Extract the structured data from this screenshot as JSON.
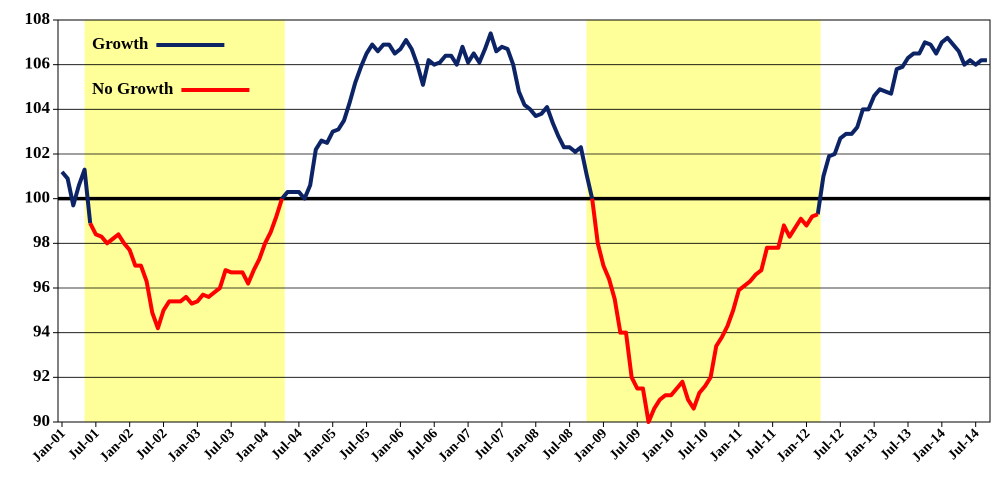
{
  "chart_data": {
    "type": "line",
    "categories": [
      "Jan-01",
      null,
      null,
      null,
      null,
      null,
      "Jul-01",
      null,
      null,
      null,
      null,
      null,
      "Jan-02",
      null,
      null,
      null,
      null,
      null,
      "Jul-02",
      null,
      null,
      null,
      null,
      null,
      "Jan-03",
      null,
      null,
      null,
      null,
      null,
      "Jul-03",
      null,
      null,
      null,
      null,
      null,
      "Jan-04",
      null,
      null,
      null,
      null,
      null,
      "Jul-04",
      null,
      null,
      null,
      null,
      null,
      "Jan-05",
      null,
      null,
      null,
      null,
      null,
      "Jul-05",
      null,
      null,
      null,
      null,
      null,
      "Jan-06",
      null,
      null,
      null,
      null,
      null,
      "Jul-06",
      null,
      null,
      null,
      null,
      null,
      "Jan-07",
      null,
      null,
      null,
      null,
      null,
      "Jul-07",
      null,
      null,
      null,
      null,
      null,
      "Jan-08",
      null,
      null,
      null,
      null,
      null,
      "Jul-08",
      null,
      null,
      null,
      null,
      null,
      "Jan-09",
      null,
      null,
      null,
      null,
      null,
      "Jul-09",
      null,
      null,
      null,
      null,
      null,
      "Jan-10",
      null,
      null,
      null,
      null,
      null,
      "Jul-10",
      null,
      null,
      null,
      null,
      null,
      "Jan-11",
      null,
      null,
      null,
      null,
      null,
      "Jul-11",
      null,
      null,
      null,
      null,
      null,
      "Jan-12",
      null,
      null,
      null,
      null,
      null,
      "Jul-12",
      null,
      null,
      null,
      null,
      null,
      "Jan-13",
      null,
      null,
      null,
      null,
      null,
      "Jul-13",
      null,
      null,
      null,
      null,
      null,
      "Jan-14",
      null,
      null,
      null,
      null,
      null,
      "Jul-14",
      null,
      null
    ],
    "series": [
      {
        "name": "Growth",
        "color": "#0c2366",
        "values": [
          101.2,
          100.9,
          99.7,
          100.6,
          101.3,
          98.9,
          null,
          null,
          null,
          null,
          null,
          null,
          null,
          null,
          null,
          null,
          null,
          null,
          null,
          null,
          null,
          null,
          null,
          null,
          null,
          null,
          null,
          null,
          null,
          null,
          null,
          null,
          null,
          null,
          null,
          null,
          null,
          null,
          null,
          100.0,
          100.3,
          100.3,
          100.3,
          100.0,
          100.6,
          102.2,
          102.6,
          102.5,
          103.0,
          103.1,
          103.5,
          104.3,
          105.2,
          105.9,
          106.5,
          106.9,
          106.6,
          106.9,
          106.9,
          106.5,
          106.7,
          107.1,
          106.7,
          106.0,
          105.1,
          106.2,
          106.0,
          106.1,
          106.4,
          106.4,
          106.0,
          106.8,
          106.1,
          106.5,
          106.1,
          106.7,
          107.4,
          106.6,
          106.8,
          106.7,
          106.0,
          104.8,
          104.2,
          104.0,
          103.7,
          103.8,
          104.1,
          103.4,
          102.8,
          102.3,
          102.3,
          102.1,
          102.3,
          101.1,
          100.0,
          null,
          null,
          null,
          null,
          null,
          null,
          null,
          null,
          null,
          null,
          null,
          null,
          null,
          null,
          null,
          null,
          null,
          null,
          null,
          null,
          null,
          null,
          null,
          null,
          null,
          null,
          null,
          null,
          null,
          null,
          null,
          null,
          null,
          null,
          null,
          null,
          null,
          null,
          null,
          99.3,
          101.0,
          101.9,
          102.0,
          102.7,
          102.9,
          102.9,
          103.2,
          104.0,
          104.0,
          104.6,
          104.9,
          104.8,
          104.7,
          105.8,
          105.9,
          106.3,
          106.5,
          106.5,
          107.0,
          106.9,
          106.5,
          107.0,
          107.2,
          106.9,
          106.6,
          106.0,
          106.2,
          106.0,
          106.2,
          106.2
        ]
      },
      {
        "name": "No Growth",
        "color": "#ff0000",
        "values": [
          null,
          null,
          null,
          null,
          null,
          98.9,
          98.4,
          98.3,
          98.0,
          98.2,
          98.4,
          98.0,
          97.7,
          97.0,
          97.0,
          96.3,
          94.9,
          94.2,
          95.0,
          95.4,
          95.4,
          95.4,
          95.6,
          95.3,
          95.4,
          95.7,
          95.6,
          95.8,
          96.0,
          96.8,
          96.7,
          96.7,
          96.7,
          96.2,
          96.8,
          97.3,
          98.0,
          98.5,
          99.2,
          100.0,
          null,
          null,
          null,
          null,
          null,
          null,
          null,
          null,
          null,
          null,
          null,
          null,
          null,
          null,
          null,
          null,
          null,
          null,
          null,
          null,
          null,
          null,
          null,
          null,
          null,
          null,
          null,
          null,
          null,
          null,
          null,
          null,
          null,
          null,
          null,
          null,
          null,
          null,
          null,
          null,
          null,
          null,
          null,
          null,
          null,
          null,
          null,
          null,
          null,
          null,
          null,
          null,
          null,
          null,
          100.0,
          98.0,
          97.0,
          96.4,
          95.5,
          94.0,
          94.0,
          92.0,
          91.5,
          91.5,
          90.0,
          90.6,
          91.0,
          91.2,
          91.2,
          91.5,
          91.8,
          91.0,
          90.6,
          91.3,
          91.6,
          92.0,
          93.4,
          93.8,
          94.3,
          95.0,
          95.9,
          96.1,
          96.3,
          96.6,
          96.8,
          97.8,
          97.8,
          97.8,
          98.8,
          98.3,
          98.7,
          99.1,
          98.8,
          99.2,
          99.3,
          null,
          null,
          null,
          null,
          null,
          null,
          null,
          null,
          null,
          null,
          null,
          null,
          null,
          null,
          null,
          null,
          null,
          null,
          null,
          null,
          null,
          null,
          null,
          null,
          null,
          null,
          null,
          null,
          null,
          null
        ]
      }
    ],
    "ylim": [
      90,
      108
    ],
    "yticks": [
      90,
      92,
      94,
      96,
      98,
      100,
      102,
      104,
      106,
      108
    ],
    "grid": true,
    "reference_line": 100,
    "shade_color": "#ffff99",
    "legend": "upper left"
  }
}
